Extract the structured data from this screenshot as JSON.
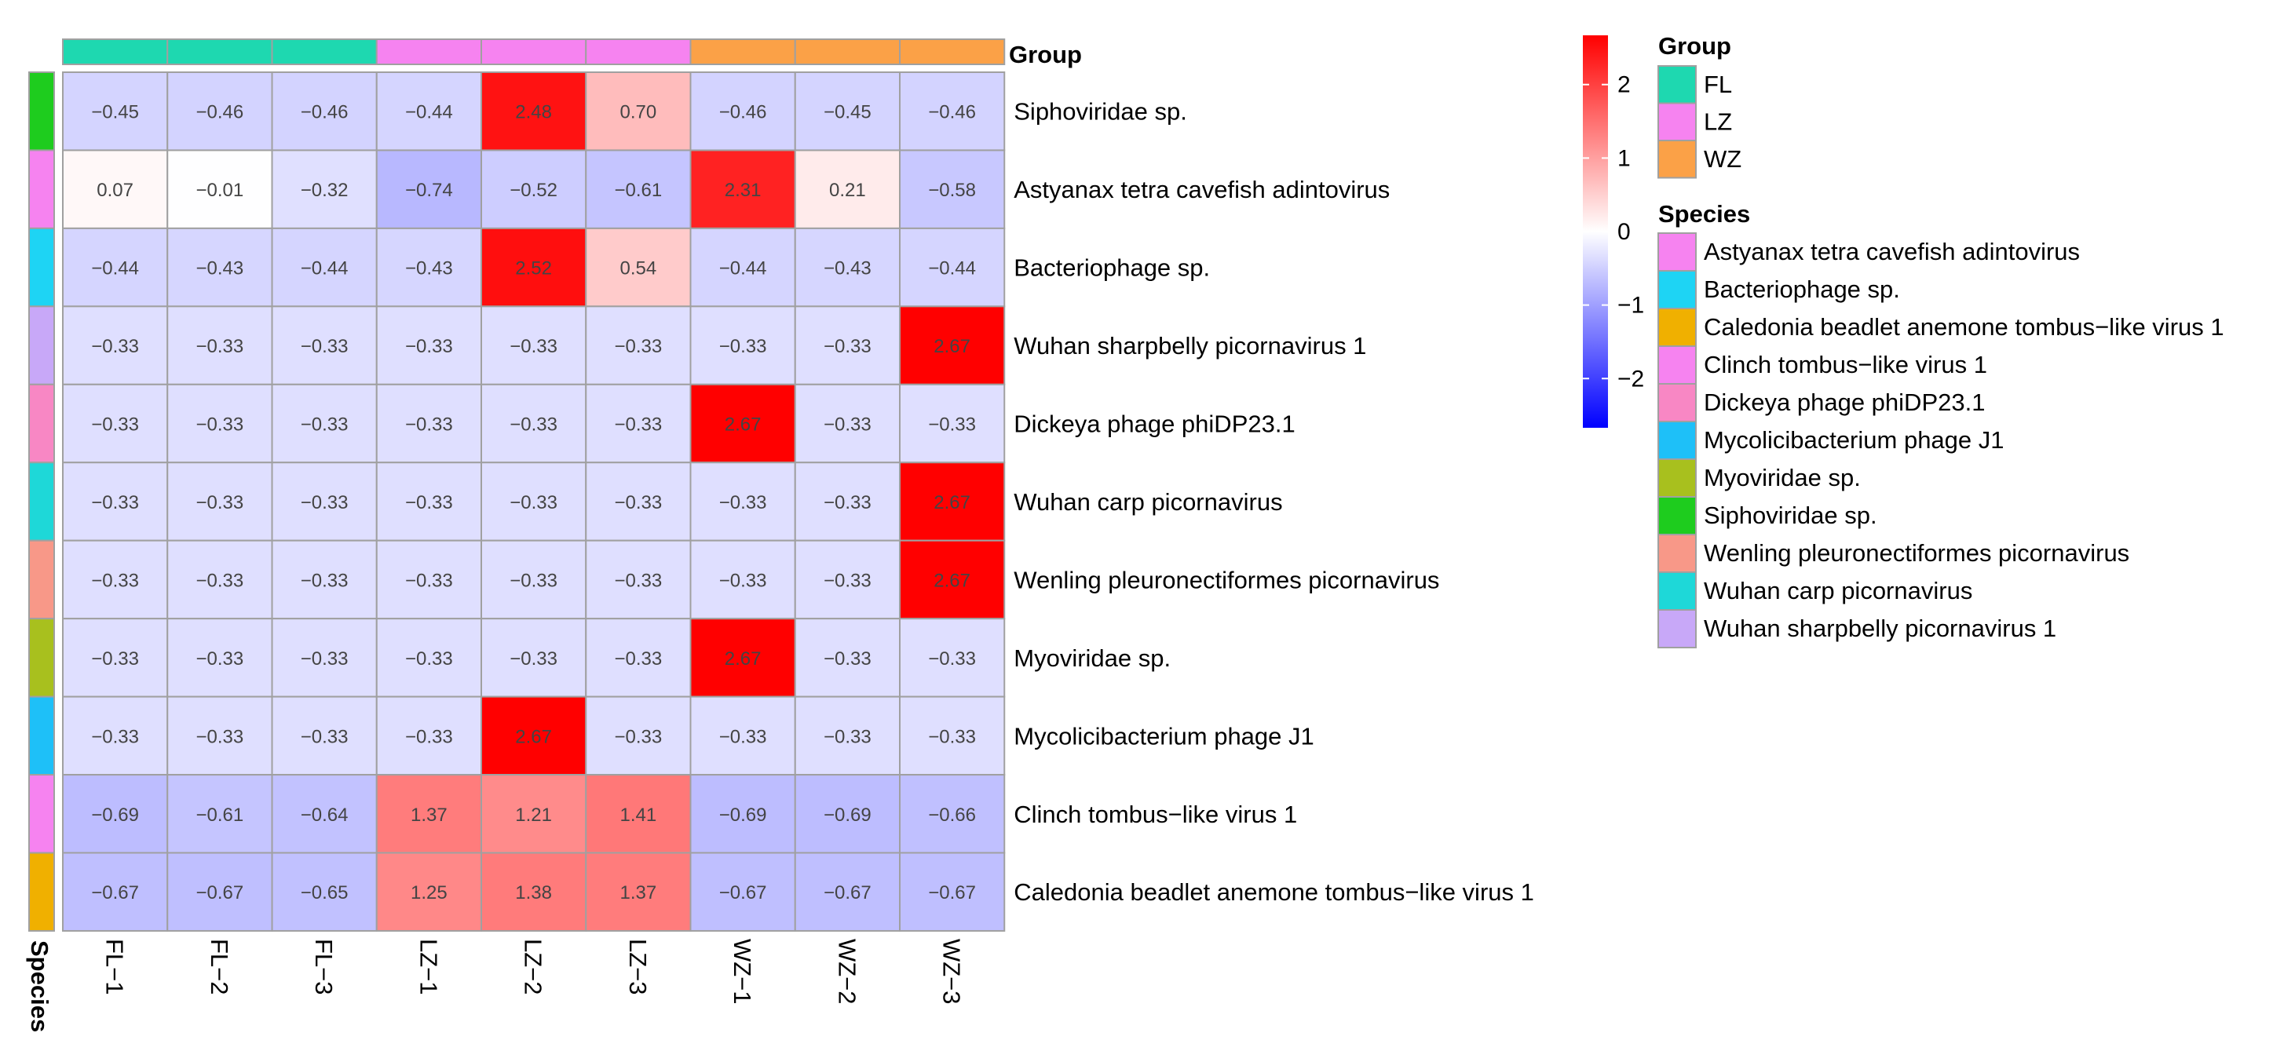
{
  "chart_data": {
    "type": "heatmap",
    "columns": [
      "FL−1",
      "FL−2",
      "FL−3",
      "LZ−1",
      "LZ−2",
      "LZ−3",
      "WZ−1",
      "WZ−2",
      "WZ−3"
    ],
    "column_groups": [
      "FL",
      "FL",
      "FL",
      "LZ",
      "LZ",
      "LZ",
      "WZ",
      "WZ",
      "WZ"
    ],
    "rows": [
      "Siphoviridae sp.",
      "Astyanax tetra cavefish adintovirus",
      "Bacteriophage sp.",
      "Wuhan sharpbelly picornavirus 1",
      "Dickeya phage phiDP23.1",
      "Wuhan carp picornavirus",
      "Wenling pleuronectiformes picornavirus",
      "Myoviridae sp.",
      "Mycolicibacterium phage J1",
      "Clinch tombus−like virus 1",
      "Caledonia beadlet anemone tombus−like virus 1"
    ],
    "values": [
      [
        -0.45,
        -0.46,
        -0.46,
        -0.44,
        2.48,
        0.7,
        -0.46,
        -0.45,
        -0.46
      ],
      [
        0.07,
        -0.01,
        -0.32,
        -0.74,
        -0.52,
        -0.61,
        2.31,
        0.21,
        -0.58
      ],
      [
        -0.44,
        -0.43,
        -0.44,
        -0.43,
        2.52,
        0.54,
        -0.44,
        -0.43,
        -0.44
      ],
      [
        -0.33,
        -0.33,
        -0.33,
        -0.33,
        -0.33,
        -0.33,
        -0.33,
        -0.33,
        2.67
      ],
      [
        -0.33,
        -0.33,
        -0.33,
        -0.33,
        -0.33,
        -0.33,
        2.67,
        -0.33,
        -0.33
      ],
      [
        -0.33,
        -0.33,
        -0.33,
        -0.33,
        -0.33,
        -0.33,
        -0.33,
        -0.33,
        2.67
      ],
      [
        -0.33,
        -0.33,
        -0.33,
        -0.33,
        -0.33,
        -0.33,
        -0.33,
        -0.33,
        2.67
      ],
      [
        -0.33,
        -0.33,
        -0.33,
        -0.33,
        -0.33,
        -0.33,
        2.67,
        -0.33,
        -0.33
      ],
      [
        -0.33,
        -0.33,
        -0.33,
        -0.33,
        2.67,
        -0.33,
        -0.33,
        -0.33,
        -0.33
      ],
      [
        -0.69,
        -0.61,
        -0.64,
        1.37,
        1.21,
        1.41,
        -0.69,
        -0.69,
        -0.66
      ],
      [
        -0.67,
        -0.67,
        -0.65,
        1.25,
        1.38,
        1.37,
        -0.67,
        -0.67,
        -0.67
      ]
    ],
    "value_labels": [
      [
        "−0.45",
        "−0.46",
        "−0.46",
        "−0.44",
        "2.48",
        "0.70",
        "−0.46",
        "−0.45",
        "−0.46"
      ],
      [
        "0.07",
        "−0.01",
        "−0.32",
        "−0.74",
        "−0.52",
        "−0.61",
        "2.31",
        "0.21",
        "−0.58"
      ],
      [
        "−0.44",
        "−0.43",
        "−0.44",
        "−0.43",
        "2.52",
        "0.54",
        "−0.44",
        "−0.43",
        "−0.44"
      ],
      [
        "−0.33",
        "−0.33",
        "−0.33",
        "−0.33",
        "−0.33",
        "−0.33",
        "−0.33",
        "−0.33",
        "2.67"
      ],
      [
        "−0.33",
        "−0.33",
        "−0.33",
        "−0.33",
        "−0.33",
        "−0.33",
        "2.67",
        "−0.33",
        "−0.33"
      ],
      [
        "−0.33",
        "−0.33",
        "−0.33",
        "−0.33",
        "−0.33",
        "−0.33",
        "−0.33",
        "−0.33",
        "2.67"
      ],
      [
        "−0.33",
        "−0.33",
        "−0.33",
        "−0.33",
        "−0.33",
        "−0.33",
        "−0.33",
        "−0.33",
        "2.67"
      ],
      [
        "−0.33",
        "−0.33",
        "−0.33",
        "−0.33",
        "−0.33",
        "−0.33",
        "2.67",
        "−0.33",
        "−0.33"
      ],
      [
        "−0.33",
        "−0.33",
        "−0.33",
        "−0.33",
        "2.67",
        "−0.33",
        "−0.33",
        "−0.33",
        "−0.33"
      ],
      [
        "−0.69",
        "−0.61",
        "−0.64",
        "1.37",
        "1.21",
        "1.41",
        "−0.69",
        "−0.69",
        "−0.66"
      ],
      [
        "−0.67",
        "−0.67",
        "−0.65",
        "1.25",
        "1.38",
        "1.37",
        "−0.67",
        "−0.67",
        "−0.67"
      ]
    ],
    "color_scale": {
      "low": "#0000ff",
      "mid": "#ffffff",
      "high": "#ff0000",
      "range": [
        -2.67,
        2.67
      ],
      "ticks": [
        2,
        1,
        0,
        -1,
        -2
      ],
      "tick_labels": [
        "2",
        "1",
        "0",
        "−1",
        "−2"
      ]
    },
    "group_annotation": {
      "title": "Group",
      "legend": [
        {
          "label": "FL",
          "color": "#1ed8b0"
        },
        {
          "label": "LZ",
          "color": "#f683f0"
        },
        {
          "label": "WZ",
          "color": "#fba147"
        }
      ]
    },
    "species_annotation": {
      "title": "Species",
      "row_colors": [
        "#1ecc1e",
        "#f683f0",
        "#1ed4f4",
        "#c8a8f8",
        "#f887c4",
        "#1ed8d8",
        "#f89888",
        "#a8c01e",
        "#1ec0f8",
        "#f683f0",
        "#f0b000"
      ],
      "legend": [
        {
          "label": "Astyanax tetra cavefish adintovirus",
          "color": "#f683f0"
        },
        {
          "label": "Bacteriophage sp.",
          "color": "#1ed4f4"
        },
        {
          "label": "Caledonia beadlet anemone tombus−like virus 1",
          "color": "#f0b000"
        },
        {
          "label": "Clinch tombus−like virus 1",
          "color": "#f683f0"
        },
        {
          "label": "Dickeya phage phiDP23.1",
          "color": "#f887c4"
        },
        {
          "label": "Mycolicibacterium phage J1",
          "color": "#1ec0f8"
        },
        {
          "label": "Myoviridae sp.",
          "color": "#a8c01e"
        },
        {
          "label": "Siphoviridae sp.",
          "color": "#1ecc1e"
        },
        {
          "label": "Wenling pleuronectiformes picornavirus",
          "color": "#f89888"
        },
        {
          "label": "Wuhan carp picornavirus",
          "color": "#1ed8d8"
        },
        {
          "label": "Wuhan sharpbelly picornavirus 1",
          "color": "#c8a8f8"
        }
      ]
    }
  }
}
